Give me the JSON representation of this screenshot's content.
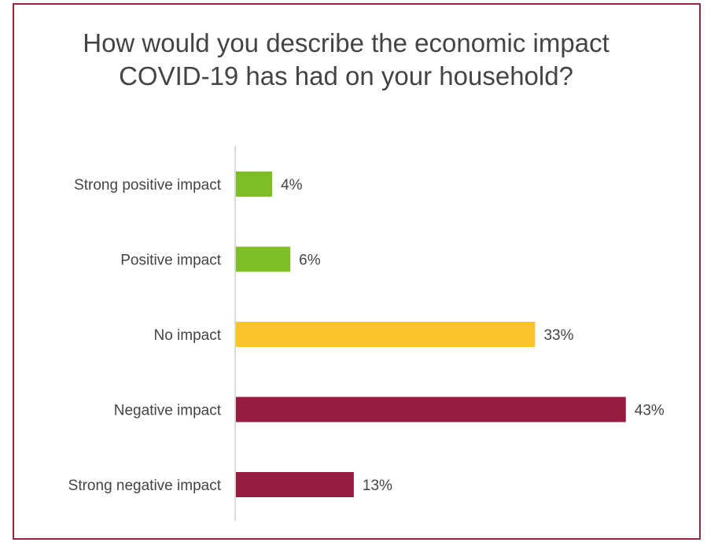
{
  "chart_data": {
    "type": "bar",
    "orientation": "horizontal",
    "title": "How would you describe the economic impact COVID-19 has had on your household?",
    "categories": [
      "Strong positive impact",
      "Positive impact",
      "No impact",
      "Negative impact",
      "Strong negative impact"
    ],
    "values": [
      4,
      6,
      33,
      43,
      13
    ],
    "value_labels": [
      "4%",
      "6%",
      "33%",
      "43%",
      "13%"
    ],
    "colors": [
      "#7ebd23",
      "#7ebd23",
      "#fcc42a",
      "#951c3f",
      "#951c3f"
    ],
    "xlabel": "",
    "ylabel": "",
    "xlim": [
      0,
      43
    ],
    "grid": false,
    "legend": "none"
  },
  "style": {
    "border_color": "#8c2a3e",
    "title_color": "#444444",
    "label_color": "#444444",
    "axis_color": "#d9d9d9"
  }
}
